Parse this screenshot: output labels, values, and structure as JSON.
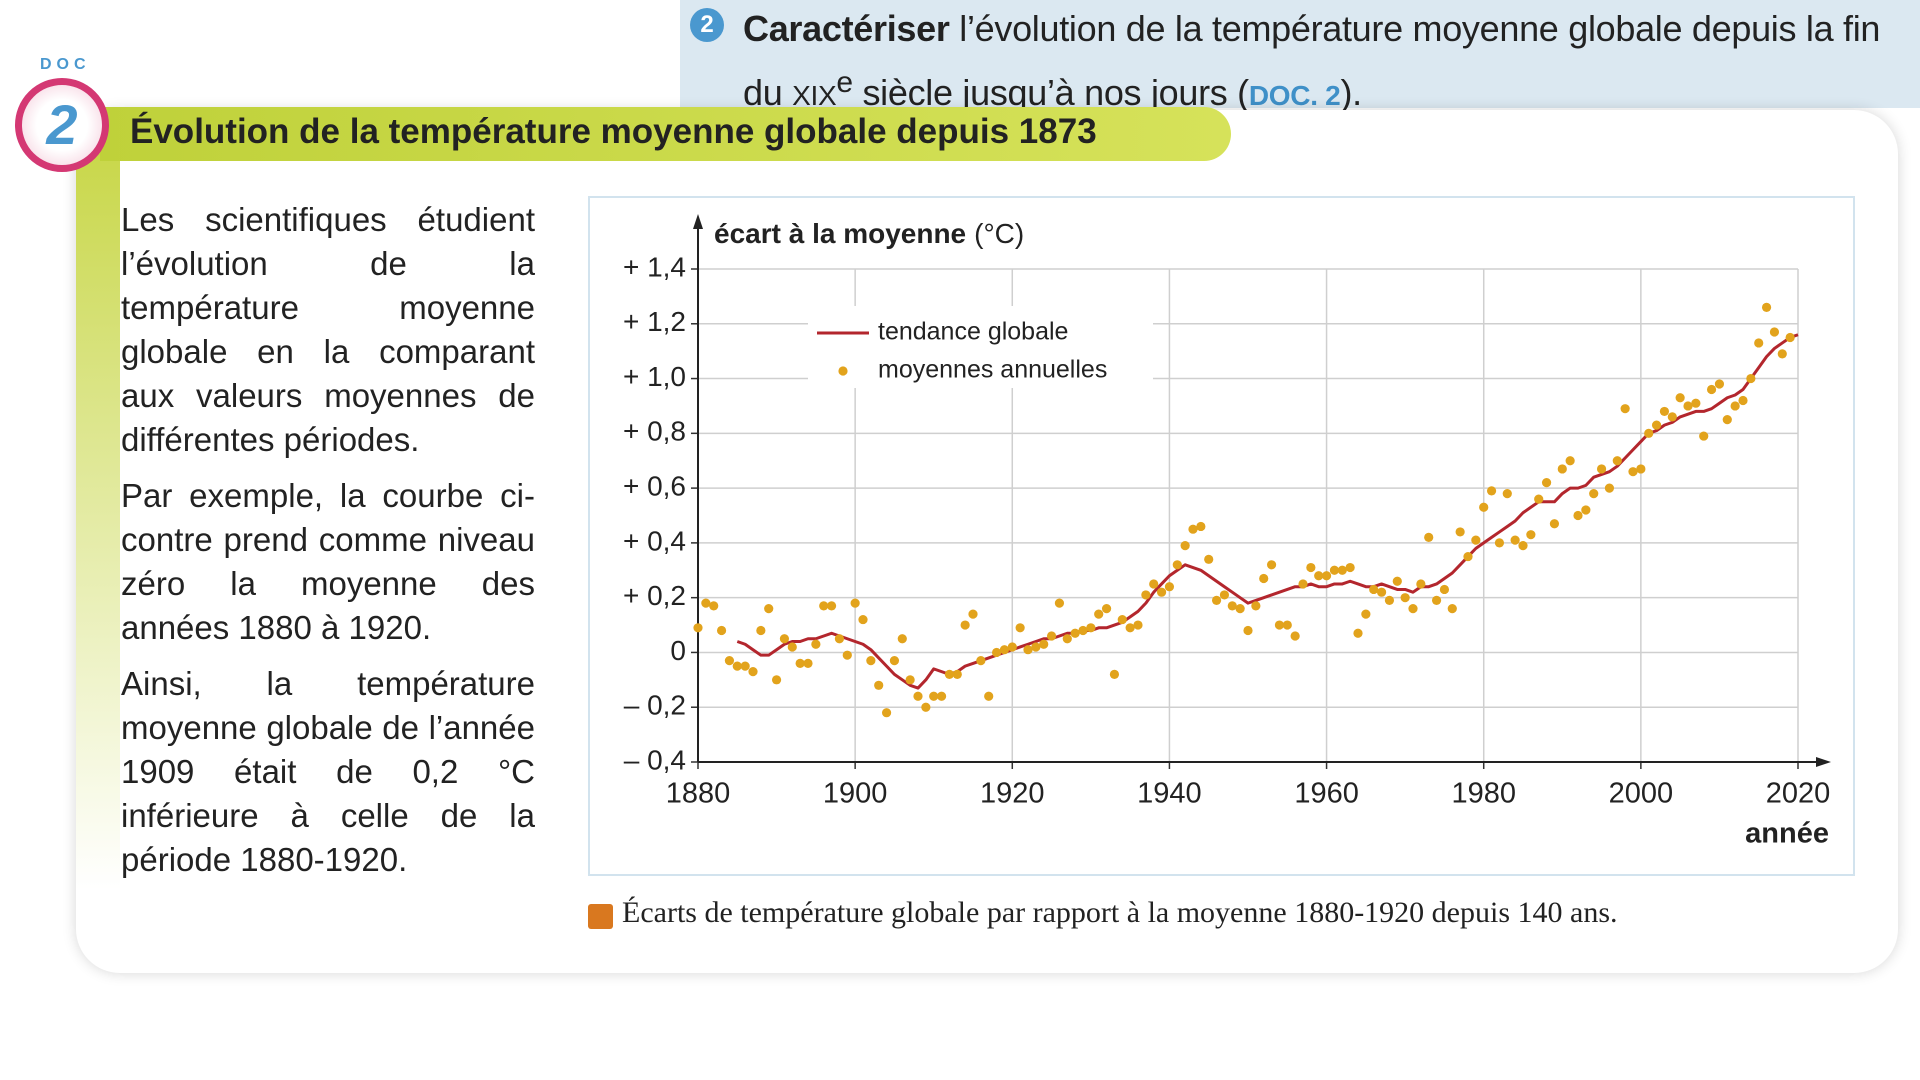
{
  "question": {
    "number": "2",
    "verb": "Caractériser",
    "text1": "l’évolution de la température moyenne globale depuis la fin du",
    "century": "XIX",
    "sup": "e",
    "text2": "siècle jusqu’à nos jours (",
    "ref": "DOC. 2",
    "end": ")."
  },
  "doc": {
    "label": "DOC",
    "number": "2",
    "title": "Évolution de la température moyenne globale depuis 1873"
  },
  "paragraphs": [
    "Les scientifiques étudient l’évolution de la température moyenne globale en la comparant aux valeurs moyennes de différentes périodes.",
    "Par exemple, la courbe ci-contre prend comme niveau zéro la moyenne des années 1880 à 1920.",
    "Ainsi, la température moyenne globale de l’année 1909 était de 0,2 °C inférieure à celle de la période 1880-1920."
  ],
  "caption": "Écarts de température globale par rapport à la moyenne 1880-1920 depuis 140 ans.",
  "chart_data": {
    "type": "line",
    "ylabel": "écart à la moyenne",
    "yunit": "(°C)",
    "xlabel": "année",
    "xlim": [
      1880,
      2020
    ],
    "ylim": [
      -0.4,
      1.4
    ],
    "xticks": [
      1880,
      1900,
      1920,
      1940,
      1960,
      1980,
      2000,
      2020
    ],
    "yticks": [
      {
        "value": -0.4,
        "label": "– 0,4"
      },
      {
        "value": -0.2,
        "label": "– 0,2"
      },
      0,
      {
        "value": 0.2,
        "label": "+ 0,2"
      },
      {
        "value": 0.4,
        "label": "+ 0,4"
      },
      {
        "value": 0.6,
        "label": "+ 0,6"
      },
      {
        "value": 0.8,
        "label": "+ 0,8"
      },
      {
        "value": 1.0,
        "label": "+ 1,0"
      },
      {
        "value": 1.2,
        "label": "+ 1,2"
      },
      {
        "value": 1.4,
        "label": "+ 1,4"
      }
    ],
    "grid": true,
    "x": [
      1880,
      1881,
      1882,
      1883,
      1884,
      1885,
      1886,
      1887,
      1888,
      1889,
      1890,
      1891,
      1892,
      1893,
      1894,
      1895,
      1896,
      1897,
      1898,
      1899,
      1900,
      1901,
      1902,
      1903,
      1904,
      1905,
      1906,
      1907,
      1908,
      1909,
      1910,
      1911,
      1912,
      1913,
      1914,
      1915,
      1916,
      1917,
      1918,
      1919,
      1920,
      1921,
      1922,
      1923,
      1924,
      1925,
      1926,
      1927,
      1928,
      1929,
      1930,
      1931,
      1932,
      1933,
      1934,
      1935,
      1936,
      1937,
      1938,
      1939,
      1940,
      1941,
      1942,
      1943,
      1944,
      1945,
      1946,
      1947,
      1948,
      1949,
      1950,
      1951,
      1952,
      1953,
      1954,
      1955,
      1956,
      1957,
      1958,
      1959,
      1960,
      1961,
      1962,
      1963,
      1964,
      1965,
      1966,
      1967,
      1968,
      1969,
      1970,
      1971,
      1972,
      1973,
      1974,
      1975,
      1976,
      1977,
      1978,
      1979,
      1980,
      1981,
      1982,
      1983,
      1984,
      1985,
      1986,
      1987,
      1988,
      1989,
      1990,
      1991,
      1992,
      1993,
      1994,
      1995,
      1996,
      1997,
      1998,
      1999,
      2000,
      2001,
      2002,
      2003,
      2004,
      2005,
      2006,
      2007,
      2008,
      2009,
      2010,
      2011,
      2012,
      2013,
      2014,
      2015,
      2016,
      2017,
      2018,
      2019,
      2020
    ],
    "series": [
      {
        "name": "tendance globale",
        "type": "line",
        "color": "#b3262d",
        "values": [
          null,
          null,
          null,
          null,
          null,
          0.04,
          0.03,
          0.01,
          -0.01,
          -0.01,
          0.01,
          0.03,
          0.04,
          0.04,
          0.05,
          0.05,
          0.06,
          0.07,
          0.06,
          0.05,
          0.04,
          0.03,
          0.01,
          -0.02,
          -0.05,
          -0.08,
          -0.1,
          -0.12,
          -0.13,
          -0.1,
          -0.06,
          -0.07,
          -0.08,
          -0.07,
          -0.05,
          -0.04,
          -0.03,
          -0.02,
          -0.01,
          0,
          0.01,
          0.02,
          0.03,
          0.04,
          0.05,
          0.05,
          0.06,
          0.07,
          0.07,
          0.08,
          0.08,
          0.09,
          0.09,
          0.1,
          0.11,
          0.13,
          0.15,
          0.18,
          0.22,
          0.25,
          0.28,
          0.3,
          0.32,
          0.31,
          0.3,
          0.28,
          0.26,
          0.24,
          0.22,
          0.2,
          0.18,
          0.19,
          0.2,
          0.21,
          0.22,
          0.23,
          0.24,
          0.24,
          0.25,
          0.24,
          0.24,
          0.25,
          0.25,
          0.26,
          0.25,
          0.24,
          0.24,
          0.25,
          0.24,
          0.23,
          0.23,
          0.22,
          0.24,
          0.24,
          0.25,
          0.27,
          0.29,
          0.32,
          0.35,
          0.38,
          0.4,
          0.42,
          0.44,
          0.46,
          0.48,
          0.51,
          0.53,
          0.55,
          0.55,
          0.55,
          0.58,
          0.6,
          0.6,
          0.61,
          0.64,
          0.65,
          0.66,
          0.68,
          0.71,
          0.74,
          0.77,
          0.8,
          0.81,
          0.83,
          0.84,
          0.86,
          0.87,
          0.88,
          0.88,
          0.89,
          0.91,
          0.93,
          0.94,
          0.96,
          1.0,
          1.04,
          1.08,
          1.11,
          1.13,
          1.15,
          1.16
        ]
      },
      {
        "name": "moyennes annuelles",
        "type": "scatter",
        "color": "#e2a31c",
        "values": [
          0.09,
          0.18,
          0.17,
          0.08,
          -0.03,
          -0.05,
          -0.05,
          -0.07,
          0.08,
          0.16,
          -0.1,
          0.05,
          0.02,
          -0.04,
          -0.04,
          0.03,
          0.17,
          0.17,
          0.05,
          -0.01,
          0.18,
          0.12,
          -0.03,
          -0.12,
          -0.22,
          -0.03,
          0.05,
          -0.1,
          -0.16,
          -0.2,
          -0.16,
          -0.16,
          -0.08,
          -0.08,
          0.1,
          0.14,
          -0.03,
          -0.16,
          0,
          0.01,
          0.02,
          0.09,
          0.01,
          0.02,
          0.03,
          0.06,
          0.18,
          0.05,
          0.07,
          0.08,
          0.09,
          0.14,
          0.16,
          -0.08,
          0.12,
          0.09,
          0.1,
          0.21,
          0.25,
          0.22,
          0.24,
          0.32,
          0.39,
          0.45,
          0.46,
          0.34,
          0.19,
          0.21,
          0.17,
          0.16,
          0.08,
          0.17,
          0.27,
          0.32,
          0.1,
          0.1,
          0.06,
          0.25,
          0.31,
          0.28,
          0.28,
          0.3,
          0.3,
          0.31,
          0.07,
          0.14,
          0.23,
          0.22,
          0.19,
          0.26,
          0.2,
          0.16,
          0.25,
          0.42,
          0.19,
          0.23,
          0.16,
          0.44,
          0.35,
          0.41,
          0.53,
          0.59,
          0.4,
          0.58,
          0.41,
          0.39,
          0.43,
          0.56,
          0.62,
          0.47,
          0.67,
          0.7,
          0.5,
          0.52,
          0.58,
          0.67,
          0.6,
          0.7,
          0.89,
          0.66,
          0.67,
          0.8,
          0.83,
          0.88,
          0.86,
          0.93,
          0.9,
          0.91,
          0.79,
          0.96,
          0.98,
          0.85,
          0.9,
          0.92,
          1.0,
          1.13,
          1.26,
          1.17,
          1.09,
          1.15,
          null
        ]
      }
    ]
  }
}
